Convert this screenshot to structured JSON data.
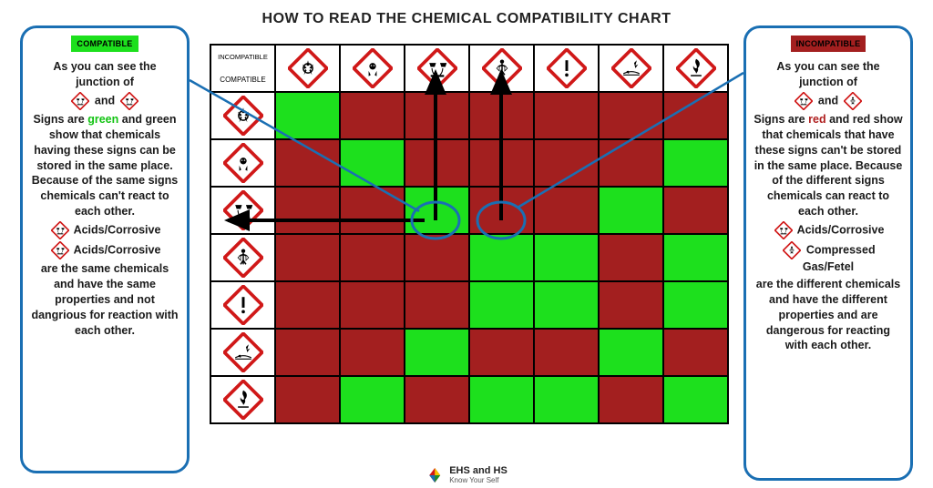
{
  "title": "HOW TO READ THE CHEMICAL COMPATIBILITY CHART",
  "colors": {
    "compatible": "#1de01d",
    "incompatible": "#a31f1f",
    "border_blue": "#1a6fb3",
    "grid_border": "#000000",
    "background": "#ffffff",
    "icon_outline": "#d01818"
  },
  "badges": {
    "compatible": "COMPATIBLE",
    "incompatible": "INCOMPATIBLE"
  },
  "left_panel": {
    "p1a": "As you can see the junction of",
    "p1b": "and",
    "p2a": "Signs are",
    "p2_highlight": "green",
    "p2b": "and green show that chemicals having these signs can be stored in the same place. Because of the same signs chemicals can't react to each other.",
    "line1": "Acids/Corrosive",
    "line2": "Acids/Corrosive",
    "p3": "are the same chemicals and have the same properties and not dangrious for reaction with each other."
  },
  "right_panel": {
    "p1a": "As you can see the junction of",
    "p1b": "and",
    "p2a": "Signs are",
    "p2_highlight": "red",
    "p2b": "and red show that chemicals that have these signs can't be stored in the same place. Because of the different signs chemicals can react to each other.",
    "line1": "Acids/Corrosive",
    "line2a": "Compressed",
    "line2b": "Gas/Fetel",
    "p3": "are the different chemicals and have the different properties and are dangerous for reacting with each other."
  },
  "hazards": [
    "oxidizer",
    "toxic",
    "corrosive",
    "health",
    "exclaim",
    "enviro",
    "flammable"
  ],
  "grid": [
    [
      "g",
      "r",
      "r",
      "r",
      "r",
      "r",
      "r"
    ],
    [
      "r",
      "g",
      "r",
      "r",
      "r",
      "r",
      "g"
    ],
    [
      "r",
      "r",
      "g",
      "r",
      "r",
      "g",
      "r"
    ],
    [
      "r",
      "r",
      "r",
      "g",
      "g",
      "r",
      "g"
    ],
    [
      "r",
      "r",
      "r",
      "g",
      "g",
      "r",
      "g"
    ],
    [
      "r",
      "r",
      "g",
      "r",
      "r",
      "g",
      "r"
    ],
    [
      "r",
      "g",
      "r",
      "g",
      "g",
      "r",
      "g"
    ]
  ],
  "highlight_circles": [
    {
      "row": 2,
      "col": 2,
      "label": "compatible-junction"
    },
    {
      "row": 2,
      "col": 3,
      "label": "incompatible-junction"
    }
  ],
  "footer": {
    "brand": "EHS and HS",
    "tag": "Know Your Self"
  }
}
